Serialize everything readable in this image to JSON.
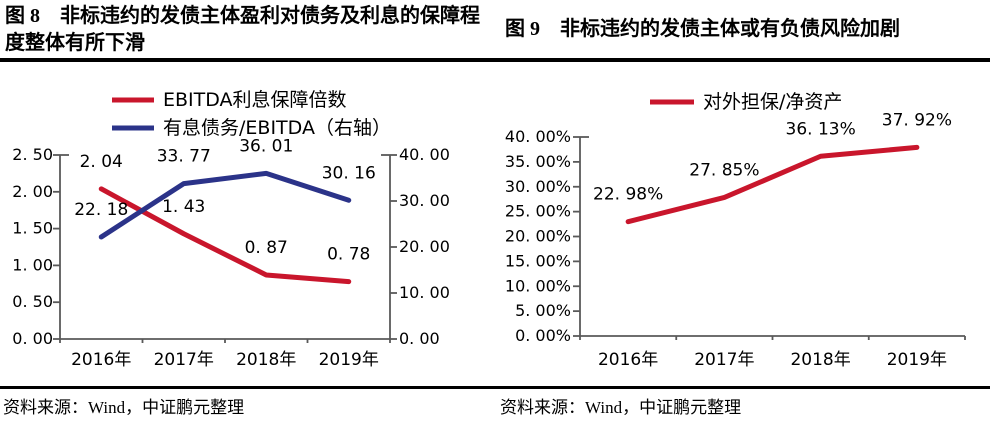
{
  "figure8": {
    "title": "图 8　非标违约的发债主体盈利对债务及利息的保障程度整体有所下滑",
    "source": "资料来源：Wind，中证鹏元整理"
  },
  "figure9": {
    "title": "图 9　非标违约的发债主体或有负债风险加剧",
    "source": "资料来源：Wind，中证鹏元整理"
  },
  "colors": {
    "red": "#C9162C",
    "blue": "#2B3389",
    "axis": "#595959",
    "text": "#000000",
    "rule": "#000000"
  },
  "chart_data": [
    {
      "id": "fig8",
      "type": "line",
      "title": "图 8　非标违约的发债主体盈利对债务及利息的保障程度整体有所下滑",
      "categories": [
        "2016年",
        "2017年",
        "2018年",
        "2019年"
      ],
      "series": [
        {
          "name": "EBITDA利息保障倍数",
          "axis": "left",
          "color_key": "red",
          "values": [
            2.04,
            1.43,
            0.87,
            0.78
          ],
          "point_labels": [
            "2. 04",
            "1. 43",
            "0. 87",
            "0. 78"
          ]
        },
        {
          "name": "有息债务/EBITDA（右轴）",
          "axis": "right",
          "color_key": "blue",
          "values": [
            22.18,
            33.77,
            36.01,
            30.16
          ],
          "point_labels": [
            "22. 18",
            "33. 77",
            "36. 01",
            "30. 16"
          ]
        }
      ],
      "left_axis": {
        "min": 0,
        "max": 2.5,
        "step": 0.5,
        "tick_labels": [
          "0. 00",
          "0. 50",
          "1. 00",
          "1. 50",
          "2. 00",
          "2. 50"
        ]
      },
      "right_axis": {
        "min": 0,
        "max": 40,
        "step": 10,
        "tick_labels": [
          "0. 00",
          "10. 00",
          "20. 00",
          "30. 00",
          "40. 00"
        ]
      },
      "legend_position": "top",
      "grid": false
    },
    {
      "id": "fig9",
      "type": "line",
      "title": "图 9　非标违约的发债主体或有负债风险加剧",
      "categories": [
        "2016年",
        "2017年",
        "2018年",
        "2019年"
      ],
      "series": [
        {
          "name": "对外担保/净资产",
          "axis": "left",
          "color_key": "red",
          "values": [
            22.98,
            27.85,
            36.13,
            37.92
          ],
          "point_labels": [
            "22. 98%",
            "27. 85%",
            "36. 13%",
            "37. 92%"
          ]
        }
      ],
      "left_axis": {
        "min": 0,
        "max": 40,
        "step": 5,
        "tick_labels": [
          "0. 00%",
          "5. 00%",
          "10. 00%",
          "15. 00%",
          "20. 00%",
          "25. 00%",
          "30. 00%",
          "35. 00%",
          "40. 00%"
        ]
      },
      "legend_position": "top",
      "grid": false
    }
  ]
}
